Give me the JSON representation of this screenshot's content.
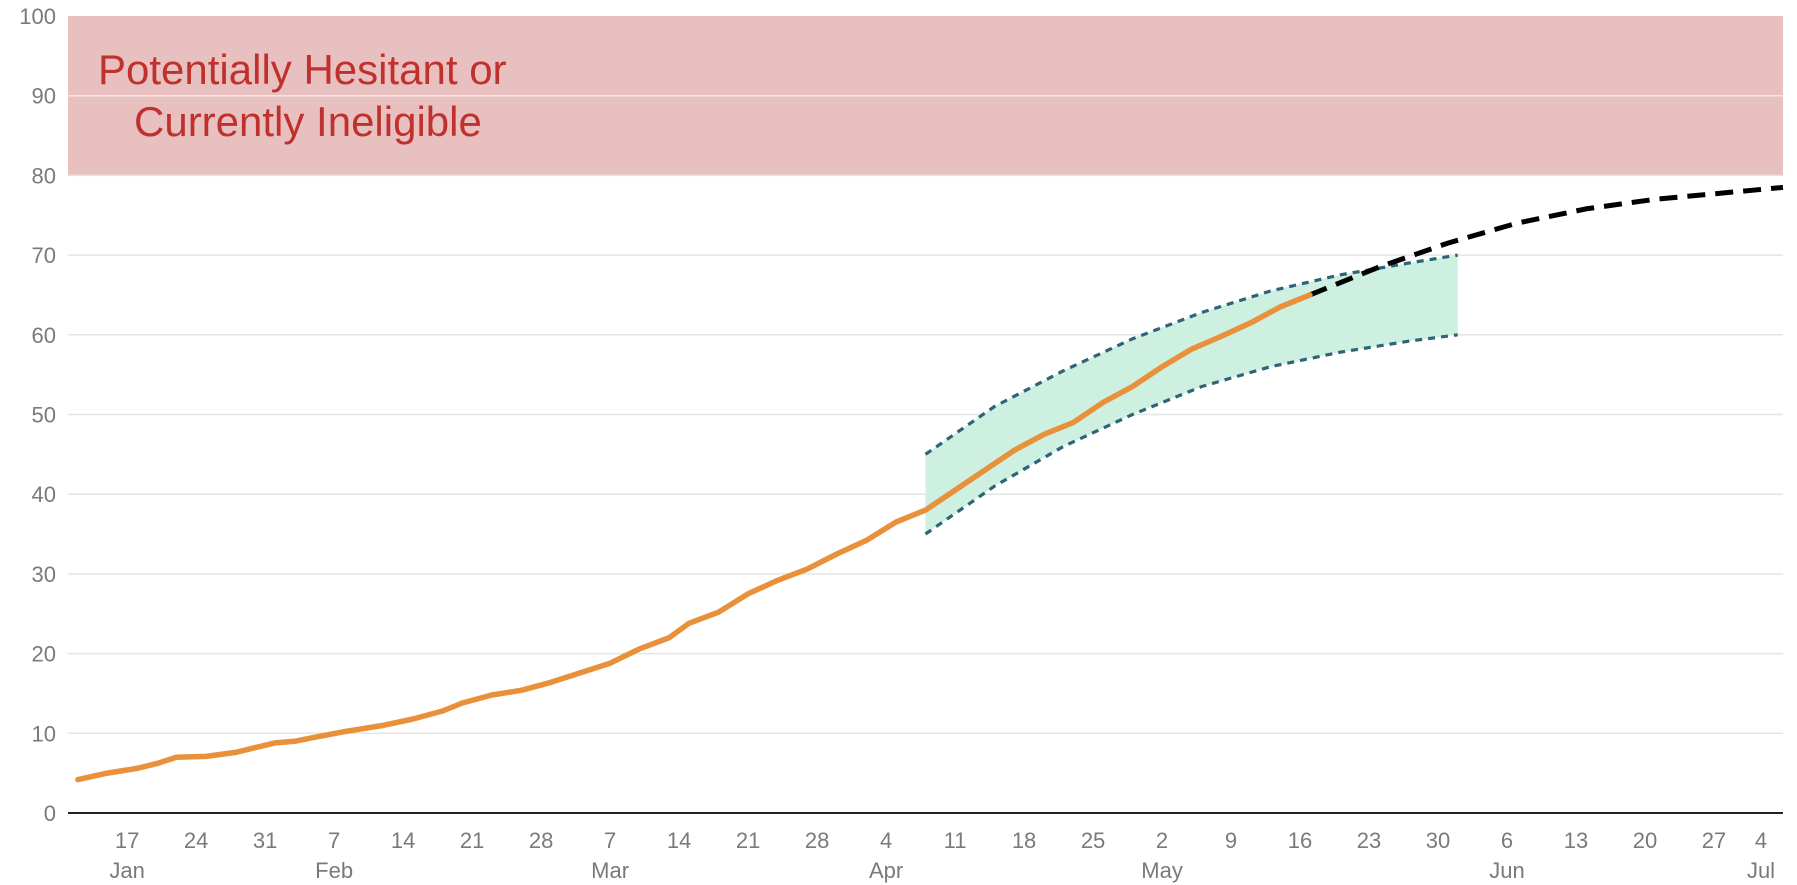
{
  "chart_data": {
    "type": "line",
    "title": "",
    "xlabel": "",
    "ylabel": "",
    "ylim": [
      0,
      100
    ],
    "xlim": [
      "2021-01-11",
      "2021-07-04"
    ],
    "grid": true,
    "y_ticks": [
      "0",
      "10",
      "20",
      "30",
      "40",
      "50",
      "60",
      "70",
      "80",
      "90",
      "100"
    ],
    "x_ticks": [
      {
        "date": "2021-01-17",
        "day": "17",
        "month": "Jan"
      },
      {
        "date": "2021-01-24",
        "day": "24",
        "month": ""
      },
      {
        "date": "2021-01-31",
        "day": "31",
        "month": ""
      },
      {
        "date": "2021-02-07",
        "day": "7",
        "month": "Feb"
      },
      {
        "date": "2021-02-14",
        "day": "14",
        "month": ""
      },
      {
        "date": "2021-02-21",
        "day": "21",
        "month": ""
      },
      {
        "date": "2021-02-28",
        "day": "28",
        "month": ""
      },
      {
        "date": "2021-03-07",
        "day": "7",
        "month": "Mar"
      },
      {
        "date": "2021-03-14",
        "day": "14",
        "month": ""
      },
      {
        "date": "2021-03-21",
        "day": "21",
        "month": ""
      },
      {
        "date": "2021-03-28",
        "day": "28",
        "month": ""
      },
      {
        "date": "2021-04-04",
        "day": "4",
        "month": "Apr"
      },
      {
        "date": "2021-04-11",
        "day": "11",
        "month": ""
      },
      {
        "date": "2021-04-18",
        "day": "18",
        "month": ""
      },
      {
        "date": "2021-04-25",
        "day": "25",
        "month": ""
      },
      {
        "date": "2021-05-02",
        "day": "2",
        "month": "May"
      },
      {
        "date": "2021-05-09",
        "day": "9",
        "month": ""
      },
      {
        "date": "2021-05-16",
        "day": "16",
        "month": ""
      },
      {
        "date": "2021-05-23",
        "day": "23",
        "month": ""
      },
      {
        "date": "2021-05-30",
        "day": "30",
        "month": ""
      },
      {
        "date": "2021-06-06",
        "day": "6",
        "month": "Jun"
      },
      {
        "date": "2021-06-13",
        "day": "13",
        "month": ""
      },
      {
        "date": "2021-06-20",
        "day": "20",
        "month": ""
      },
      {
        "date": "2021-06-27",
        "day": "27",
        "month": ""
      },
      {
        "date": "2021-07-04",
        "day": "4",
        "month": "Jul"
      }
    ],
    "shaded_region": {
      "y_from": 80,
      "y_to": 100,
      "label_lines": [
        "Potentially Hesitant or",
        "Currently Ineligible"
      ],
      "fill_color": "#e8c0c0",
      "text_color": "#c0302c"
    },
    "series": [
      {
        "role": "actual",
        "color": "#e8913a",
        "style": "solid",
        "x": [
          "2021-01-12",
          "2021-01-15",
          "2021-01-18",
          "2021-01-20",
          "2021-01-22",
          "2021-01-25",
          "2021-01-28",
          "2021-01-30",
          "2021-02-01",
          "2021-02-03",
          "2021-02-05",
          "2021-02-08",
          "2021-02-12",
          "2021-02-15",
          "2021-02-18",
          "2021-02-20",
          "2021-02-23",
          "2021-02-26",
          "2021-03-01",
          "2021-03-04",
          "2021-03-07",
          "2021-03-10",
          "2021-03-13",
          "2021-03-15",
          "2021-03-18",
          "2021-03-21",
          "2021-03-24",
          "2021-03-27",
          "2021-03-30",
          "2021-04-02",
          "2021-04-05",
          "2021-04-08",
          "2021-04-11",
          "2021-04-14",
          "2021-04-17",
          "2021-04-20",
          "2021-04-23",
          "2021-04-26",
          "2021-04-29",
          "2021-05-02",
          "2021-05-05",
          "2021-05-08",
          "2021-05-11",
          "2021-05-14",
          "2021-05-17"
        ],
        "values": [
          4.2,
          5.0,
          5.6,
          6.2,
          7.0,
          7.1,
          7.6,
          8.2,
          8.8,
          9.0,
          9.5,
          10.2,
          11.0,
          11.8,
          12.8,
          13.8,
          14.8,
          15.4,
          16.4,
          17.6,
          18.8,
          20.6,
          22.0,
          23.8,
          25.2,
          27.5,
          29.2,
          30.6,
          32.5,
          34.2,
          36.5,
          38.0,
          40.5,
          43.0,
          45.5,
          47.5,
          49.0,
          51.5,
          53.5,
          56.0,
          58.2,
          59.8,
          61.5,
          63.5,
          65.0
        ]
      },
      {
        "role": "upper bound",
        "color": "#2e6378",
        "style": "dotted",
        "x": [
          "2021-04-08",
          "2021-04-15",
          "2021-04-22",
          "2021-04-29",
          "2021-05-06",
          "2021-05-13",
          "2021-05-20",
          "2021-05-27",
          "2021-06-01"
        ],
        "values": [
          45.0,
          51.0,
          55.5,
          59.5,
          62.8,
          65.5,
          67.5,
          69.0,
          70.0
        ]
      },
      {
        "role": "lower bound",
        "color": "#2e6378",
        "style": "dotted",
        "x": [
          "2021-04-08",
          "2021-04-15",
          "2021-04-22",
          "2021-04-29",
          "2021-05-06",
          "2021-05-13",
          "2021-05-20",
          "2021-05-27",
          "2021-06-01"
        ],
        "values": [
          35.0,
          41.0,
          46.0,
          50.0,
          53.5,
          56.0,
          57.8,
          59.2,
          60.0
        ]
      },
      {
        "role": "projection",
        "color": "#000000",
        "style": "dashed",
        "x": [
          "2021-05-17",
          "2021-05-24",
          "2021-05-31",
          "2021-06-07",
          "2021-06-14",
          "2021-06-21",
          "2021-06-28",
          "2021-07-04"
        ],
        "values": [
          65.0,
          68.5,
          71.5,
          74.0,
          75.8,
          77.0,
          77.8,
          78.5
        ]
      }
    ],
    "band_fill_color": "#cdf0e1"
  }
}
